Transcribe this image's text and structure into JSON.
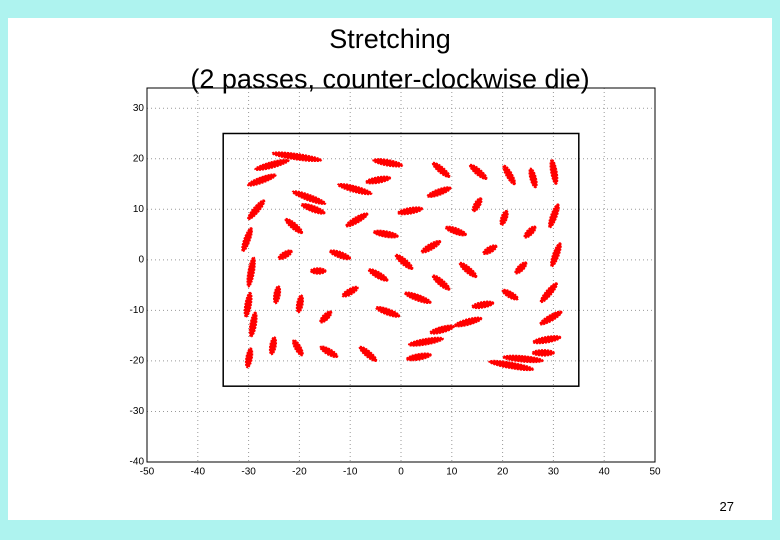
{
  "chart_data": {
    "type": "scatter",
    "title_lines": [
      "Stretching",
      "(2 passes, counter-clockwise die)"
    ],
    "page_number": "27",
    "xlim": [
      -50,
      50
    ],
    "xticks": [
      -50,
      -40,
      -30,
      -20,
      -10,
      0,
      10,
      20,
      30,
      40,
      50
    ],
    "ylim": [
      -40,
      34
    ],
    "yticks": [
      -40,
      -30,
      -20,
      -10,
      0,
      10,
      20,
      30
    ],
    "grid": true,
    "color": "#ff0000",
    "frame_x": [
      -35,
      35
    ],
    "frame_y": [
      -25,
      25
    ],
    "x": [
      -20.5,
      -25.4,
      -27.4,
      -2.6,
      7.9,
      15.2,
      21.3,
      26.0,
      30.1,
      -9.1,
      -4.5,
      7.5,
      -18.1,
      -28.5,
      -17.3,
      -8.7,
      1.8,
      15.0,
      20.3,
      30.1,
      -30.3,
      -21.1,
      10.8,
      25.4,
      -3.0,
      5.9,
      17.5,
      30.5,
      -22.8,
      -12.0,
      0.6,
      13.2,
      23.6,
      -29.5,
      -16.3,
      -4.5,
      -10.0,
      7.9,
      -24.4,
      -30.1,
      3.3,
      21.5,
      29.1,
      -19.9,
      -2.6,
      16.1,
      29.5,
      -14.8,
      8.1,
      13.2,
      -29.1,
      28.7,
      4.9,
      -25.2,
      -20.3,
      -14.2,
      -6.5,
      -29.9,
      28.0,
      24.0,
      21.7,
      3.5
    ],
    "y": [
      20.4,
      18.8,
      15.8,
      19.2,
      17.8,
      17.4,
      16.8,
      16.2,
      17.4,
      14.0,
      15.8,
      13.4,
      12.3,
      9.9,
      10.1,
      7.9,
      9.7,
      10.9,
      8.3,
      8.7,
      4.0,
      6.7,
      5.7,
      5.5,
      5.1,
      2.6,
      2.0,
      1.0,
      1.0,
      1.0,
      -0.4,
      -2.0,
      -1.6,
      -2.4,
      -2.2,
      -3.0,
      -6.3,
      -4.5,
      -6.9,
      -8.9,
      -7.5,
      -6.9,
      -6.5,
      -8.7,
      -10.3,
      -8.9,
      -11.5,
      -11.3,
      -13.8,
      -12.3,
      -12.8,
      -15.8,
      -16.2,
      -17.0,
      -17.4,
      -18.2,
      -18.6,
      -19.4,
      -18.4,
      -19.6,
      -20.9,
      -19.2
    ],
    "lengths": [
      9.8,
      6.9,
      5.9,
      5.9,
      4.3,
      4.3,
      4.3,
      3.9,
      4.9,
      6.9,
      4.9,
      4.9,
      6.9,
      4.9,
      4.9,
      4.9,
      4.9,
      3.0,
      3.0,
      4.9,
      4.9,
      4.3,
      4.3,
      3.0,
      4.9,
      4.3,
      3.0,
      4.9,
      3.0,
      4.3,
      4.3,
      4.3,
      3.0,
      5.9,
      3.0,
      4.3,
      3.5,
      4.3,
      3.5,
      4.9,
      5.5,
      3.5,
      4.9,
      3.5,
      4.9,
      4.3,
      4.9,
      3.0,
      4.9,
      5.5,
      4.9,
      5.5,
      6.9,
      3.5,
      3.5,
      3.9,
      4.3,
      3.9,
      4.3,
      7.9,
      8.9,
      4.9
    ],
    "angles": [
      -8,
      15,
      20,
      -10,
      -40,
      -40,
      -60,
      -75,
      -80,
      -15,
      10,
      20,
      -20,
      50,
      -20,
      30,
      10,
      60,
      70,
      70,
      70,
      -40,
      -20,
      45,
      -10,
      30,
      30,
      70,
      30,
      -20,
      -40,
      -40,
      45,
      80,
      0,
      -30,
      30,
      -40,
      80,
      80,
      -20,
      -30,
      50,
      80,
      -20,
      10,
      30,
      45,
      15,
      15,
      80,
      10,
      10,
      80,
      -60,
      -30,
      -40,
      80,
      0,
      -5,
      -10,
      10
    ]
  }
}
